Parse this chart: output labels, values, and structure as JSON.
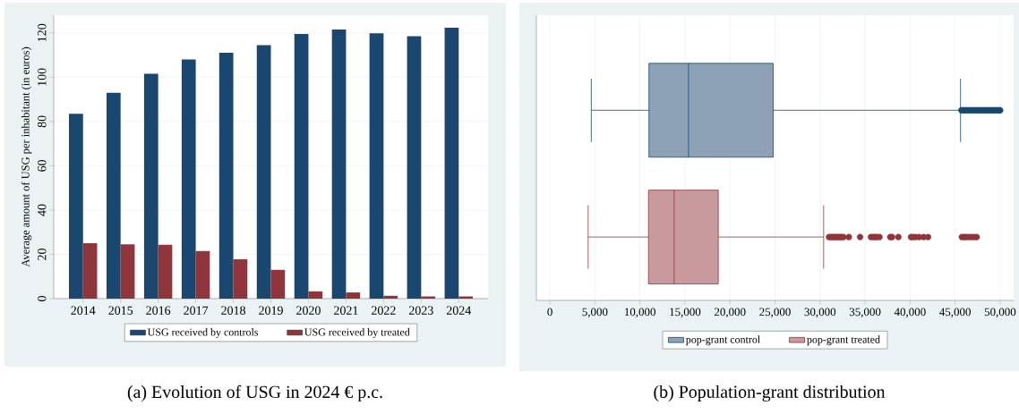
{
  "chart_data": [
    {
      "type": "bar",
      "title": "(a) Evolution of USG in 2024 € p.c.",
      "ylabel": "Average amount of USG per inhabitant (in euros)",
      "categories": [
        "2014",
        "2015",
        "2016",
        "2017",
        "2018",
        "2019",
        "2020",
        "2021",
        "2022",
        "2023",
        "2024"
      ],
      "series": [
        {
          "name": "USG received by controls",
          "color": "#1a476f",
          "values": [
            83.5,
            93,
            101.5,
            108,
            111,
            114.5,
            119.5,
            121.5,
            119.8,
            118.5,
            122.3
          ]
        },
        {
          "name": "USG received by treated",
          "color": "#90353b",
          "values": [
            25,
            24.5,
            24.3,
            21.5,
            17.8,
            13,
            3.3,
            2.8,
            1.3,
            1,
            1
          ]
        }
      ],
      "ylim": [
        0,
        128
      ],
      "yticks": [
        0,
        20,
        40,
        60,
        80,
        100,
        120
      ],
      "grid": "y",
      "legend": "bottom"
    },
    {
      "type": "box",
      "orientation": "horizontal",
      "title": "(b) Population-grant distribution",
      "categories": [
        null,
        null
      ],
      "series": [
        {
          "name": "pop-grant control",
          "color": "#1a476f",
          "boxes": [
            {
              "low": 4600,
              "q1": 11000,
              "median": 15400,
              "q3": 24800,
              "high": 45600,
              "outliers": [
                45700,
                45900,
                46100,
                46300,
                46500,
                46700,
                46900,
                47100,
                47300,
                47500,
                47700,
                47900,
                48100,
                48300,
                48500,
                48700,
                48900,
                49100,
                49300,
                49500,
                49700,
                49900,
                50000
              ]
            },
            null
          ]
        },
        {
          "name": "pop-grant treated",
          "color": "#90353b",
          "boxes": [
            null,
            {
              "low": 4250,
              "q1": 10950,
              "median": 13800,
              "q3": 18700,
              "high": 30400,
              "outliers": [
                31000,
                31200,
                31400,
                31600,
                31800,
                32000,
                32200,
                32400,
                32600,
                33200,
                34450,
                35650,
                35900,
                36100,
                36300,
                36600,
                37800,
                38000,
                38700,
                40100,
                40300,
                40600,
                41000,
                41500,
                42000,
                45750,
                46000,
                46200,
                46500,
                46800,
                47100,
                47400
              ]
            }
          ]
        }
      ],
      "xlim": [
        -1500,
        51500
      ],
      "xticks": [
        0,
        {
          "value": 5000,
          "label": "5,000"
        },
        {
          "value": 10000,
          "label": "10,000"
        },
        {
          "value": 15000,
          "label": "15,000"
        },
        {
          "value": 20000,
          "label": "20,000"
        },
        {
          "value": 25000,
          "label": "25,000"
        },
        {
          "value": 30000,
          "label": "30,000"
        },
        {
          "value": 35000,
          "label": "35,000"
        },
        {
          "value": 40000,
          "label": "40,000"
        },
        {
          "value": 45000,
          "label": "45,000"
        },
        {
          "value": 50000,
          "label": "50,000"
        }
      ],
      "grid": "x",
      "legend": "bottom"
    }
  ]
}
